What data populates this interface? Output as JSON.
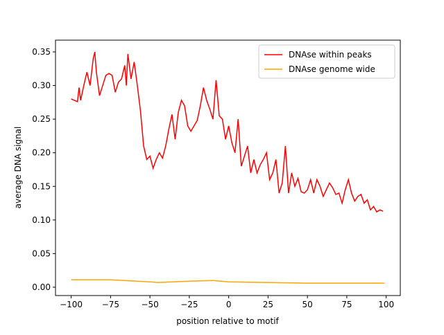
{
  "chart_data": {
    "type": "line",
    "xlabel": "position relative to motif",
    "ylabel": "average DNA signal",
    "xlim": [
      -109.95,
      108.95
    ],
    "ylim": [
      -0.0124,
      0.3675
    ],
    "xticks": [
      {
        "value": -100,
        "label": "−100"
      },
      {
        "value": -75,
        "label": "−75"
      },
      {
        "value": -50,
        "label": "−50"
      },
      {
        "value": -25,
        "label": "−25"
      },
      0,
      25,
      50,
      75,
      100
    ],
    "yticks": [
      {
        "value": 0,
        "label": "0.00"
      },
      {
        "value": 0.05,
        "label": "0.05"
      },
      {
        "value": 0.1,
        "label": "0.10"
      },
      {
        "value": 0.15,
        "label": "0.15"
      },
      {
        "value": 0.2,
        "label": "0.20"
      },
      {
        "value": 0.25,
        "label": "0.25"
      },
      {
        "value": 0.3,
        "label": "0.30"
      },
      {
        "value": 0.35,
        "label": "0.35"
      }
    ],
    "legend": "upper right",
    "series": [
      {
        "name": "DNAse within peaks",
        "color": "#ff0000",
        "x": [
          -100,
          -98,
          -96,
          -95,
          -94,
          -92,
          -90,
          -88,
          -86,
          -85,
          -84,
          -82,
          -80,
          -78,
          -76,
          -74,
          -72,
          -70,
          -68,
          -66,
          -65,
          -64,
          -62,
          -60,
          -58,
          -56,
          -54,
          -52,
          -50,
          -48,
          -46,
          -44,
          -42,
          -40,
          -38,
          -36,
          -34,
          -32,
          -30,
          -28,
          -26,
          -24,
          -22,
          -20,
          -18,
          -16,
          -14,
          -12,
          -10,
          -8,
          -6,
          -4,
          -2,
          0,
          2,
          4,
          6,
          8,
          10,
          12,
          14,
          16,
          18,
          20,
          22,
          24,
          26,
          28,
          30,
          32,
          34,
          36,
          38,
          40,
          42,
          44,
          46,
          48,
          50,
          52,
          54,
          56,
          58,
          60,
          62,
          64,
          66,
          68,
          70,
          72,
          74,
          76,
          78,
          80,
          82,
          84,
          86,
          88,
          90,
          92,
          94,
          96,
          98
        ],
        "values": [
          0.28,
          0.278,
          0.276,
          0.297,
          0.278,
          0.3,
          0.32,
          0.3,
          0.34,
          0.35,
          0.32,
          0.285,
          0.3,
          0.315,
          0.318,
          0.315,
          0.29,
          0.305,
          0.31,
          0.33,
          0.3,
          0.347,
          0.31,
          0.335,
          0.3,
          0.262,
          0.21,
          0.19,
          0.195,
          0.177,
          0.19,
          0.2,
          0.192,
          0.21,
          0.235,
          0.257,
          0.22,
          0.26,
          0.278,
          0.27,
          0.24,
          0.232,
          0.24,
          0.248,
          0.27,
          0.297,
          0.278,
          0.265,
          0.25,
          0.308,
          0.255,
          0.25,
          0.22,
          0.24,
          0.215,
          0.2,
          0.25,
          0.18,
          0.195,
          0.21,
          0.17,
          0.19,
          0.17,
          0.182,
          0.19,
          0.2,
          0.16,
          0.17,
          0.19,
          0.14,
          0.155,
          0.21,
          0.14,
          0.17,
          0.15,
          0.162,
          0.142,
          0.14,
          0.145,
          0.16,
          0.14,
          0.16,
          0.15,
          0.135,
          0.145,
          0.155,
          0.148,
          0.138,
          0.14,
          0.125,
          0.145,
          0.16,
          0.14,
          0.128,
          0.135,
          0.138,
          0.125,
          0.13,
          0.115,
          0.12,
          0.112,
          0.115,
          0.113
        ]
      },
      {
        "name": "DNAse genome wide",
        "color": "#ffa500",
        "x": [
          -100,
          -75,
          -50,
          -45,
          -25,
          -10,
          0,
          25,
          50,
          75,
          99
        ],
        "values": [
          0.011,
          0.011,
          0.008,
          0.007,
          0.009,
          0.01,
          0.008,
          0.007,
          0.006,
          0.006,
          0.006
        ]
      }
    ]
  }
}
